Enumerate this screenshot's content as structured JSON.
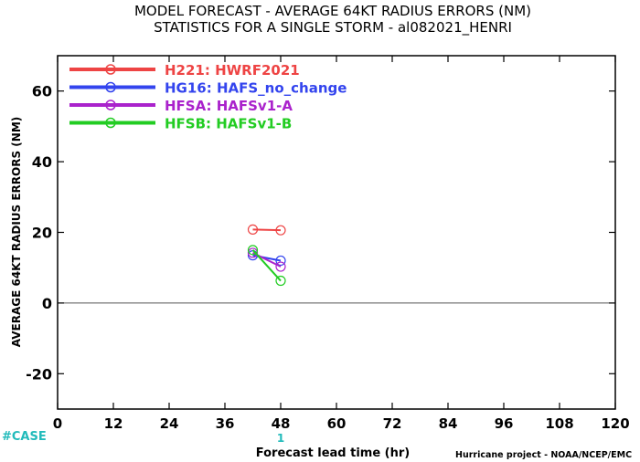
{
  "chart_data": {
    "type": "line",
    "title": "MODEL FORECAST - AVERAGE 64KT RADIUS ERRORS (NM)",
    "subtitle": "STATISTICS FOR A SINGLE STORM - al082021_HENRI",
    "xlabel": "Forecast lead time (hr)",
    "ylabel": "AVERAGE 64KT RADIUS ERRORS (NM)",
    "xlim": [
      0,
      120
    ],
    "ylim": [
      -30,
      70
    ],
    "xticks": [
      0,
      12,
      24,
      36,
      48,
      60,
      72,
      84,
      96,
      108,
      120
    ],
    "yticks": [
      -20,
      0,
      20,
      40,
      60
    ],
    "grid": false,
    "legend_position": "top-left",
    "zero_line": true,
    "case_label": "#CASE",
    "case_counts": [
      {
        "x": 48,
        "count": "1"
      }
    ],
    "credit": "Hurricane project - NOAA/NCEP/EMC",
    "series": [
      {
        "name": "H221: HWRF2021",
        "color": "#ee4444",
        "x": [
          42,
          48
        ],
        "y": [
          20.8,
          20.6
        ]
      },
      {
        "name": "HG16: HAFS_no_change",
        "color": "#3344ee",
        "x": [
          42,
          48
        ],
        "y": [
          13.5,
          12.0
        ]
      },
      {
        "name": "HFSA: HAFSv1-A",
        "color": "#aa22cc",
        "x": [
          42,
          48
        ],
        "y": [
          14.2,
          10.3
        ]
      },
      {
        "name": "HFSB: HAFSv1-B",
        "color": "#22cc22",
        "x": [
          42,
          48
        ],
        "y": [
          15.0,
          6.3
        ]
      }
    ]
  }
}
